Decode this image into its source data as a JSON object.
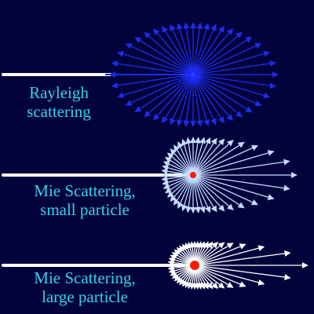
{
  "colors": {
    "background": "#03033b",
    "caption": "#36d2ea",
    "beam": "#ffffff",
    "rayleigh_arrows": "#1d2cf0",
    "mie_small_arrows": "#c4dcff",
    "mie_large_arrows": "#ffffff",
    "particle": "#ff1a00",
    "rayleigh_particle": "#2a3cff"
  },
  "panels": [
    {
      "id": "rayleigh",
      "caption_lines": [
        "Rayleigh",
        "scattering"
      ],
      "particle": "rayleigh-particle",
      "pattern": "symmetric"
    },
    {
      "id": "mie-small",
      "caption_lines": [
        "Mie Scattering,",
        "small particle"
      ],
      "particle": "small-particle",
      "pattern": "forward-lobe"
    },
    {
      "id": "mie-large",
      "caption_lines": [
        "Mie Scattering,",
        "large particle"
      ],
      "particle": "large-particle",
      "pattern": "strong-forward-lobe"
    }
  ]
}
